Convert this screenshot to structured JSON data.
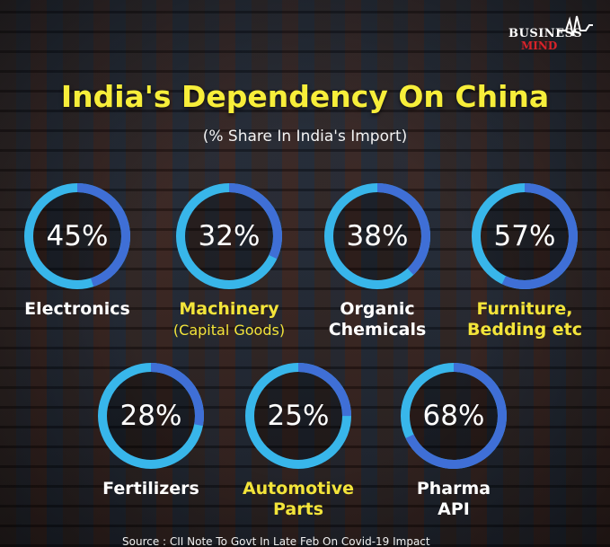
{
  "brand": {
    "line1": "BUSINESS",
    "line2": "MIND"
  },
  "title": "India's Dependency On China",
  "subtitle": "(% Share In India's Import)",
  "chart_data": {
    "type": "donut",
    "title": "India's Dependency On China",
    "subtitle": "(% Share In India's Import)",
    "unit": "%",
    "colors": {
      "filled": "#3f6fd6",
      "remainder": "#38b6ea",
      "primary_label": "#ffffff",
      "accent_label": "#f3e43a",
      "title": "#f7ee3a"
    },
    "items": [
      {
        "category": "Electronics",
        "value": 45,
        "label": "45%",
        "label_lines": [
          "Electronics"
        ],
        "label_color": "primary"
      },
      {
        "category": "Machinery (Capital Goods)",
        "value": 32,
        "label": "32%",
        "label_lines": [
          "Machinery"
        ],
        "sub_label": "(Capital Goods)",
        "label_color": "accent"
      },
      {
        "category": "Organic Chemicals",
        "value": 38,
        "label": "38%",
        "label_lines": [
          "Organic",
          "Chemicals"
        ],
        "label_color": "primary"
      },
      {
        "category": "Furniture, Bedding etc",
        "value": 57,
        "label": "57%",
        "label_lines": [
          "Furniture,",
          "Bedding etc"
        ],
        "label_color": "accent"
      },
      {
        "category": "Fertilizers",
        "value": 28,
        "label": "28%",
        "label_lines": [
          "Fertilizers"
        ],
        "label_color": "primary"
      },
      {
        "category": "Automotive Parts",
        "value": 25,
        "label": "25%",
        "label_lines": [
          "Automotive",
          "Parts"
        ],
        "label_color": "accent"
      },
      {
        "category": "Pharma API",
        "value": 68,
        "label": "68%",
        "label_lines": [
          "Pharma",
          "API"
        ],
        "label_color": "primary"
      }
    ]
  },
  "source": "Source : CII Note To Govt In Late Feb On Covid-19 Impact"
}
